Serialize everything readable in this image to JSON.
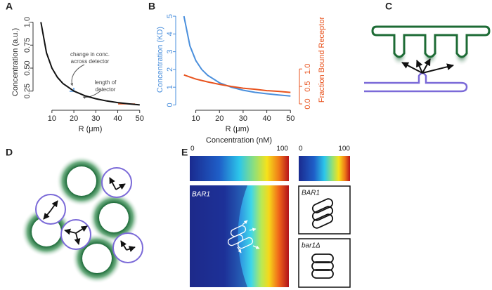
{
  "chart_data": [
    {
      "type": "line",
      "panel": "A",
      "ylabel": "Concentration (a.u.)",
      "xlabel": "R (μm)",
      "x": [
        5,
        7.5,
        10,
        12.5,
        15,
        20,
        25,
        30,
        35,
        40,
        45,
        50
      ],
      "series": [
        {
          "color": "#111111",
          "values": [
            1,
            0.667,
            0.5,
            0.4,
            0.333,
            0.25,
            0.2,
            0.167,
            0.143,
            0.125,
            0.111,
            0.1
          ]
        }
      ],
      "xlim": [
        3,
        52
      ],
      "xticks": [
        10,
        20,
        30,
        40,
        50
      ],
      "ylim": [
        0.08,
        1.05
      ],
      "yticks": [
        0.25,
        {
          "value": 0.5,
          "label": "0.50"
        },
        0.75,
        {
          "value": 1,
          "label": "1.0"
        }
      ],
      "annotations": [
        [
          "change in conc.",
          "across detector"
        ],
        [
          "length of",
          "detector"
        ]
      ]
    },
    {
      "type": "line",
      "panel": "B",
      "ylabel": "Concentration (KD)",
      "y2label": "Fraction Bound Receptor",
      "xlabel": "R (μm)",
      "ycolor": "#4a8fdc",
      "y2color": "#e8531e",
      "x": [
        5,
        7.5,
        10,
        12.5,
        15,
        20,
        25,
        30,
        35,
        40,
        45,
        50
      ],
      "series": [
        {
          "color": "#4a8fdc",
          "values": [
            5,
            3.33,
            2.5,
            2,
            1.67,
            1.25,
            1,
            0.83,
            0.71,
            0.63,
            0.56,
            0.5
          ]
        },
        {
          "color": "#e8531e",
          "axis": "y2",
          "values": [
            0.83,
            0.77,
            0.71,
            0.67,
            0.63,
            0.56,
            0.5,
            0.45,
            0.42,
            0.38,
            0.36,
            0.33
          ]
        }
      ],
      "xlim": [
        3,
        52
      ],
      "xticks": [
        10,
        20,
        30,
        40,
        50
      ],
      "ylim": [
        -0.1,
        5.2
      ],
      "yticks": [
        0,
        1,
        2,
        3,
        4,
        5
      ],
      "y2lim": [
        -0.08,
        2.61
      ],
      "y2ticks": [
        {
          "value": 0,
          "label": "0.0"
        },
        0.5,
        {
          "value": 1,
          "label": "1.0"
        }
      ]
    }
  ],
  "panels": {
    "C": "C",
    "D": "D",
    "E": "E"
  },
  "panel_e": {
    "colorbar_title": "Concentration (nM)",
    "left_bar": [
      "0",
      "100"
    ],
    "right_bar": [
      "0",
      "100"
    ],
    "heatmap_label": "BAR1",
    "box_labels": [
      "BAR1",
      "bar1Δ"
    ]
  }
}
